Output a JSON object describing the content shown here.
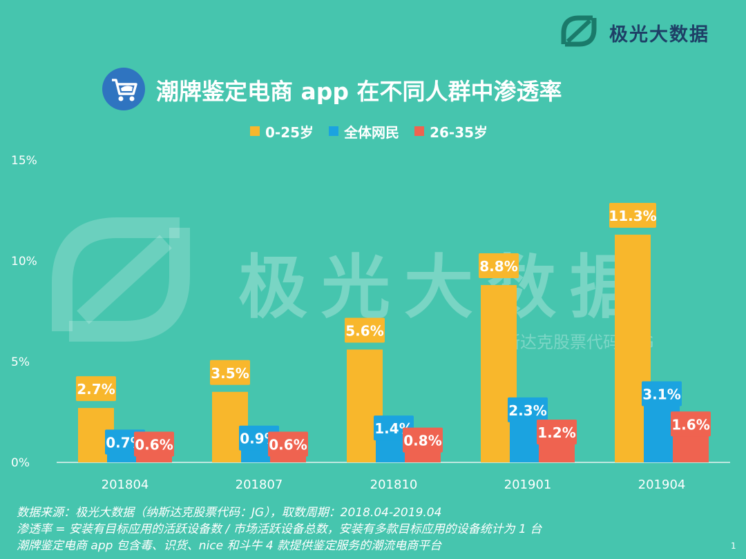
{
  "brand": {
    "name": "极光大数据",
    "watermark_sub": "纳斯达克股票代码：JG"
  },
  "title": "潮牌鉴定电商 app 在不同人群中渗透率",
  "colors": {
    "c0": "#f8b72c",
    "c1": "#1ba3e0",
    "c2": "#ef6350"
  },
  "chart_data": {
    "type": "bar",
    "title": "潮牌鉴定电商 app 在不同人群中渗透率",
    "categories": [
      "201804",
      "201807",
      "201810",
      "201901",
      "201904"
    ],
    "series": [
      {
        "name": "0-25岁",
        "values": [
          2.7,
          3.5,
          5.6,
          8.8,
          11.3
        ],
        "labels": [
          "2.7%",
          "3.5%",
          "5.6%",
          "8.8%",
          "11.3%"
        ]
      },
      {
        "name": "全体网民",
        "values": [
          0.7,
          0.9,
          1.4,
          2.3,
          3.1
        ],
        "labels": [
          "0.7%",
          "0.9%",
          "1.4%",
          "2.3%",
          "3.1%"
        ]
      },
      {
        "name": "26-35岁",
        "values": [
          0.6,
          0.6,
          0.8,
          1.2,
          1.6
        ],
        "labels": [
          "0.6%",
          "0.6%",
          "0.8%",
          "1.2%",
          "1.6%"
        ]
      }
    ],
    "yticks": [
      "0%",
      "5%",
      "10%",
      "15%"
    ],
    "ylim": [
      0,
      15
    ],
    "legend": "top-center"
  },
  "footnotes": [
    "数据来源：极光大数据（纳斯达克股票代码：JG），取数周期：2018.04-2019.04",
    "渗透率 = 安装有目标应用的活跃设备数 / 市场活跃设备总数，安装有多款目标应用的设备统计为 1 台",
    "潮牌鉴定电商 app 包含毒、识货、nice 和斗牛 4 款提供鉴定服务的潮流电商平台"
  ],
  "page_number": "1"
}
